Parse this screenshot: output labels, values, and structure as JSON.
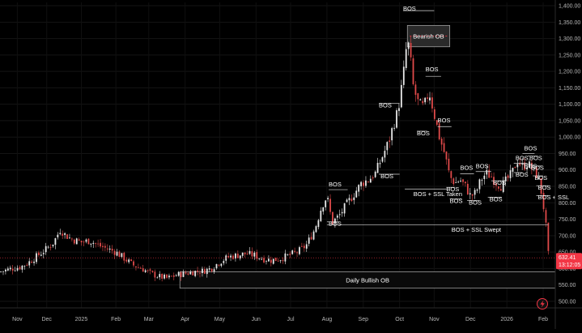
{
  "chart_data": {
    "type": "candlestick",
    "y_axis": {
      "side": "right",
      "ylim": [
        480,
        1410
      ],
      "ticks": [
        {
          "value": 1400,
          "label": "1,400.00"
        },
        {
          "value": 1350,
          "label": "1,350.00"
        },
        {
          "value": 1300,
          "label": "1,300.00"
        },
        {
          "value": 1250,
          "label": "1,250.00"
        },
        {
          "value": 1200,
          "label": "1,200.00"
        },
        {
          "value": 1150,
          "label": "1,150.00"
        },
        {
          "value": 1100,
          "label": "1,100.00"
        },
        {
          "value": 1050,
          "label": "1,050.00"
        },
        {
          "value": 1000,
          "label": "1,000.00"
        },
        {
          "value": 950,
          "label": "950.00"
        },
        {
          "value": 900,
          "label": "900.00"
        },
        {
          "value": 850,
          "label": "850.00"
        },
        {
          "value": 800,
          "label": "800.00"
        },
        {
          "value": 750,
          "label": "750.00"
        },
        {
          "value": 700,
          "label": "700.00"
        },
        {
          "value": 650,
          "label": "650.00"
        },
        {
          "value": 600,
          "label": "600.00"
        },
        {
          "value": 550,
          "label": "550.00"
        },
        {
          "value": 500,
          "label": "500.00"
        }
      ]
    },
    "x_axis": {
      "months": [
        {
          "label": "Nov",
          "pos": 0.3
        },
        {
          "label": "Dec",
          "pos": 2.0
        },
        {
          "label": "2025",
          "pos": 4.0
        },
        {
          "label": "Feb",
          "pos": 6.0
        },
        {
          "label": "Mar",
          "pos": 7.9
        },
        {
          "label": "Apr",
          "pos": 10.0
        },
        {
          "label": "May",
          "pos": 12.0
        },
        {
          "label": "Jun",
          "pos": 14.1
        },
        {
          "label": "Jul",
          "pos": 16.1
        },
        {
          "label": "Aug",
          "pos": 18.2
        },
        {
          "label": "Sep",
          "pos": 20.3
        },
        {
          "label": "Oct",
          "pos": 22.4
        },
        {
          "label": "Nov",
          "pos": 24.4
        },
        {
          "label": "Dec",
          "pos": 26.5
        },
        {
          "label": "2026",
          "pos": 28.6
        },
        {
          "label": "Feb",
          "pos": 30.7
        }
      ],
      "range": [
        -0.7,
        31.4
      ]
    },
    "price_path": [
      [
        -0.7,
        590
      ],
      [
        0,
        600
      ],
      [
        0.5,
        605
      ],
      [
        1.0,
        620
      ],
      [
        1.5,
        640
      ],
      [
        2.0,
        660
      ],
      [
        2.4,
        680
      ],
      [
        2.8,
        720
      ],
      [
        3.0,
        705
      ],
      [
        3.4,
        690
      ],
      [
        4.0,
        680
      ],
      [
        4.5,
        685
      ],
      [
        5.0,
        670
      ],
      [
        5.5,
        660
      ],
      [
        6.0,
        650
      ],
      [
        6.5,
        630
      ],
      [
        7.0,
        610
      ],
      [
        7.5,
        600
      ],
      [
        8.0,
        585
      ],
      [
        8.5,
        575
      ],
      [
        9.0,
        570
      ],
      [
        9.5,
        580
      ],
      [
        10.0,
        585
      ],
      [
        10.5,
        590
      ],
      [
        11.0,
        592
      ],
      [
        11.5,
        600
      ],
      [
        12.0,
        620
      ],
      [
        12.5,
        635
      ],
      [
        13.0,
        640
      ],
      [
        13.5,
        645
      ],
      [
        14.0,
        640
      ],
      [
        14.5,
        630
      ],
      [
        15.0,
        625
      ],
      [
        15.5,
        630
      ],
      [
        16.0,
        640
      ],
      [
        16.5,
        650
      ],
      [
        17.0,
        670
      ],
      [
        17.5,
        720
      ],
      [
        17.9,
        790
      ],
      [
        18.2,
        820
      ],
      [
        18.5,
        740
      ],
      [
        18.9,
        760
      ],
      [
        19.4,
        800
      ],
      [
        19.8,
        830
      ],
      [
        20.2,
        860
      ],
      [
        20.6,
        870
      ],
      [
        21.0,
        890
      ],
      [
        21.4,
        940
      ],
      [
        21.8,
        990
      ],
      [
        22.0,
        1030
      ],
      [
        22.3,
        1080
      ],
      [
        22.6,
        1180
      ],
      [
        22.85,
        1300
      ],
      [
        23.0,
        1250
      ],
      [
        23.2,
        1150
      ],
      [
        23.5,
        1100
      ],
      [
        23.8,
        1090
      ],
      [
        24.1,
        1140
      ],
      [
        24.4,
        1070
      ],
      [
        24.7,
        1000
      ],
      [
        25.0,
        950
      ],
      [
        25.3,
        880
      ],
      [
        25.6,
        860
      ],
      [
        25.9,
        870
      ],
      [
        26.2,
        850
      ],
      [
        26.5,
        820
      ],
      [
        26.8,
        830
      ],
      [
        27.1,
        870
      ],
      [
        27.4,
        890
      ],
      [
        27.7,
        880
      ],
      [
        28.0,
        860
      ],
      [
        28.3,
        850
      ],
      [
        28.6,
        870
      ],
      [
        28.9,
        890
      ],
      [
        29.2,
        930
      ],
      [
        29.5,
        910
      ],
      [
        29.8,
        920
      ],
      [
        30.1,
        900
      ],
      [
        30.4,
        880
      ],
      [
        30.6,
        830
      ],
      [
        30.8,
        760
      ],
      [
        30.95,
        680
      ],
      [
        31.05,
        600
      ],
      [
        31.1,
        632
      ]
    ],
    "current_price": {
      "value": 632.41,
      "label": "632.41",
      "countdown": "13:12:05",
      "color": "#f23645"
    },
    "order_blocks": [
      {
        "label": "Bearish OB",
        "x0": 22.85,
        "x1": 25.3,
        "y0": 1275,
        "y1": 1340,
        "fill": "#2a2a2a",
        "border": "#9e9e9e",
        "midline": "#f23645"
      },
      {
        "label": "Daily Bullish OB",
        "x0": 9.7,
        "x1": 31.4,
        "y0": 540,
        "y1": 590,
        "fill": "#0a0a0a",
        "border": "#9e9e9e"
      }
    ],
    "annotations": [
      {
        "label": "BOS",
        "x": 22.6,
        "y": 1385,
        "line": [
          22.6,
          24.4,
          1385
        ]
      },
      {
        "label": "BOS",
        "x": 21.2,
        "y": 1090,
        "line": [
          21.2,
          22.4,
          1103
        ]
      },
      {
        "label": "BOS",
        "x": 23.9,
        "y": 1200,
        "line": [
          23.9,
          24.8,
          1185
        ]
      },
      {
        "label": "BOS",
        "x": 18.3,
        "y": 850,
        "line": [
          18.3,
          19.4,
          840
        ]
      },
      {
        "label": "BOS",
        "x": 18.3,
        "y": 730,
        "line": [
          18.2,
          18.9,
          742
        ]
      },
      {
        "label": "BOS",
        "x": 21.3,
        "y": 875,
        "line": [
          21.2,
          22.4,
          887
        ]
      },
      {
        "label": "BOS",
        "x": 23.4,
        "y": 1005,
        "line": [
          23.4,
          24.0,
          1018
        ]
      },
      {
        "label": "BOS",
        "x": 24.6,
        "y": 1045,
        "line": [
          24.6,
          25.4,
          1032
        ]
      },
      {
        "label": "BOS",
        "x": 25.9,
        "y": 900,
        "line": [
          25.9,
          26.7,
          888
        ]
      },
      {
        "label": "BOS",
        "x": 26.8,
        "y": 905,
        "line": [
          26.8,
          27.7,
          895
        ]
      },
      {
        "label": "BOS",
        "x": 25.1,
        "y": 835,
        "line": [
          25.1,
          25.6,
          847
        ]
      },
      {
        "label": "BOS",
        "x": 25.3,
        "y": 800,
        "line": [
          25.3,
          26.0,
          812
        ]
      },
      {
        "label": "BOS",
        "x": 26.4,
        "y": 795,
        "line": [
          26.3,
          27.0,
          807
        ]
      },
      {
        "label": "BOS",
        "x": 27.6,
        "y": 805,
        "line": [
          27.5,
          28.3,
          817
        ]
      },
      {
        "label": "BOS",
        "x": 27.8,
        "y": 855,
        "line": [
          27.7,
          28.6,
          867
        ]
      },
      {
        "label": "BOS",
        "x": 29.1,
        "y": 930,
        "line": [
          29.0,
          29.8,
          920
        ]
      },
      {
        "label": "BOS",
        "x": 29.6,
        "y": 960,
        "line": [
          29.5,
          30.2,
          950
        ]
      },
      {
        "label": "BOS",
        "x": 29.1,
        "y": 880,
        "line": [
          29.0,
          29.5,
          892
        ]
      },
      {
        "label": "BOS",
        "x": 29.9,
        "y": 930,
        "line": [
          29.8,
          30.4,
          942
        ]
      },
      {
        "label": "BOS",
        "x": 30.0,
        "y": 900,
        "line": [
          29.9,
          30.6,
          912
        ]
      },
      {
        "label": "BOS",
        "x": 30.2,
        "y": 870,
        "line": [
          30.1,
          30.7,
          882
        ]
      },
      {
        "label": "BOS",
        "x": 29.6,
        "y": 905,
        "line": [
          29.5,
          30.1,
          917
        ]
      },
      {
        "label": "BOS",
        "x": 30.4,
        "y": 840,
        "line": [
          30.3,
          31.0,
          852
        ]
      },
      {
        "label": "BOS + SSL",
        "x": 30.4,
        "y": 810,
        "line": [
          30.3,
          31.0,
          822
        ]
      },
      {
        "label": "BOS + SSL Taken",
        "x": 23.2,
        "y": 820,
        "line": [
          22.7,
          25.3,
          842
        ]
      },
      {
        "label": "BOS + SSL Swept",
        "x": 25.4,
        "y": 712,
        "line": [
          18.2,
          31.0,
          733
        ]
      }
    ]
  },
  "lightning_icon": "lightning-icon"
}
